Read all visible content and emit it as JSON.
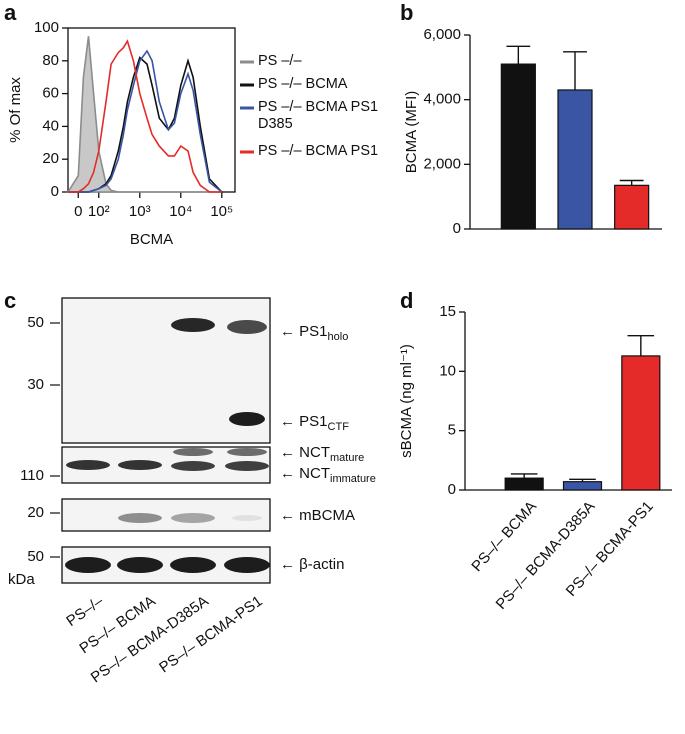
{
  "panels": [
    "a",
    "b",
    "c",
    "d"
  ],
  "chart_data": [
    {
      "type": "line",
      "xlabel": "BCMA",
      "ylabel": "% Of max",
      "xscale": "biexponential",
      "x": [
        -50,
        0,
        25,
        50,
        75,
        100,
        150,
        200,
        300,
        400,
        500,
        700,
        1000,
        1500,
        2000,
        3000,
        5000,
        7000,
        10000,
        15000,
        20000,
        30000,
        50000,
        100000
      ],
      "series": [
        {
          "name": "PS –/–",
          "color": "#8c8c8c",
          "filled": true,
          "values": [
            0,
            10,
            70,
            95,
            60,
            25,
            5,
            1,
            0,
            0,
            0,
            0,
            0,
            0,
            0,
            0,
            0,
            0,
            0,
            0,
            0,
            0,
            0,
            0
          ]
        },
        {
          "name": "PS –/– BCMA",
          "color": "#111111",
          "values": [
            0,
            0,
            0,
            0,
            1,
            2,
            5,
            10,
            25,
            40,
            55,
            70,
            82,
            78,
            65,
            45,
            38,
            45,
            65,
            80,
            70,
            40,
            8,
            0
          ]
        },
        {
          "name": "PS –/– BCMA PS1 D385",
          "color": "#3a55a4",
          "values": [
            0,
            0,
            0,
            0,
            1,
            2,
            4,
            8,
            20,
            35,
            50,
            65,
            80,
            86,
            80,
            55,
            38,
            42,
            60,
            72,
            62,
            35,
            6,
            0
          ]
        },
        {
          "name": "PS –/– BCMA PS1",
          "color": "#e52a2a",
          "values": [
            0,
            0,
            2,
            5,
            12,
            25,
            55,
            78,
            85,
            88,
            92,
            80,
            60,
            45,
            35,
            28,
            22,
            22,
            28,
            25,
            12,
            4,
            0,
            0
          ]
        }
      ],
      "xlim": [
        -50,
        210000
      ],
      "xticks": [
        0,
        {
          "value": 100,
          "label": "10²"
        },
        {
          "value": 1000,
          "label": "10³"
        },
        {
          "value": 10000,
          "label": "10⁴"
        },
        {
          "value": 100000,
          "label": "10⁵"
        }
      ],
      "ylim": [
        0,
        100
      ],
      "yticks": [
        0,
        20,
        40,
        60,
        80,
        100
      ]
    },
    {
      "type": "bar",
      "ylabel": "BCMA (MFI)",
      "categories": [
        null,
        null,
        null
      ],
      "values": [
        5100,
        4300,
        1350
      ],
      "errors": [
        550,
        1180,
        150
      ],
      "colors": [
        "#111111",
        "#3a55a4",
        "#e52a2a"
      ],
      "ylim": [
        0,
        6000
      ],
      "yticks": [
        0,
        {
          "value": 2000,
          "label": "2,000"
        },
        {
          "value": 4000,
          "label": "4,000"
        },
        {
          "value": 6000,
          "label": "6,000"
        }
      ]
    },
    {
      "type": "bar",
      "ylabel": "sBCMA (ng ml⁻¹)",
      "categories": [
        "PS–/– BCMA",
        "PS–/– BCMA-D385A",
        "PS–/– BCMA-PS1"
      ],
      "values": [
        1.0,
        0.7,
        11.3
      ],
      "errors": [
        0.35,
        0.2,
        1.7
      ],
      "colors": [
        "#111111",
        "#3a55a4",
        "#e52a2a"
      ],
      "ylim": [
        0,
        15
      ],
      "yticks": [
        0,
        5,
        10,
        15
      ]
    }
  ],
  "blot": {
    "lanes": [
      "PS–/–",
      "PS–/– BCMA",
      "PS–/– BCMA-D385A",
      "PS–/– BCMA-PS1"
    ],
    "markers": [
      "50",
      "30",
      "110",
      "20",
      "50"
    ],
    "unit": "kDa",
    "bands": [
      {
        "main": "PS1",
        "sub": "holo"
      },
      {
        "main": "PS1",
        "sub": "CTF"
      },
      {
        "main": "NCT",
        "sub": "mature"
      },
      {
        "main": "NCT",
        "sub": "immature"
      },
      {
        "main": "mBCMA"
      },
      {
        "main": "β-actin"
      }
    ]
  }
}
